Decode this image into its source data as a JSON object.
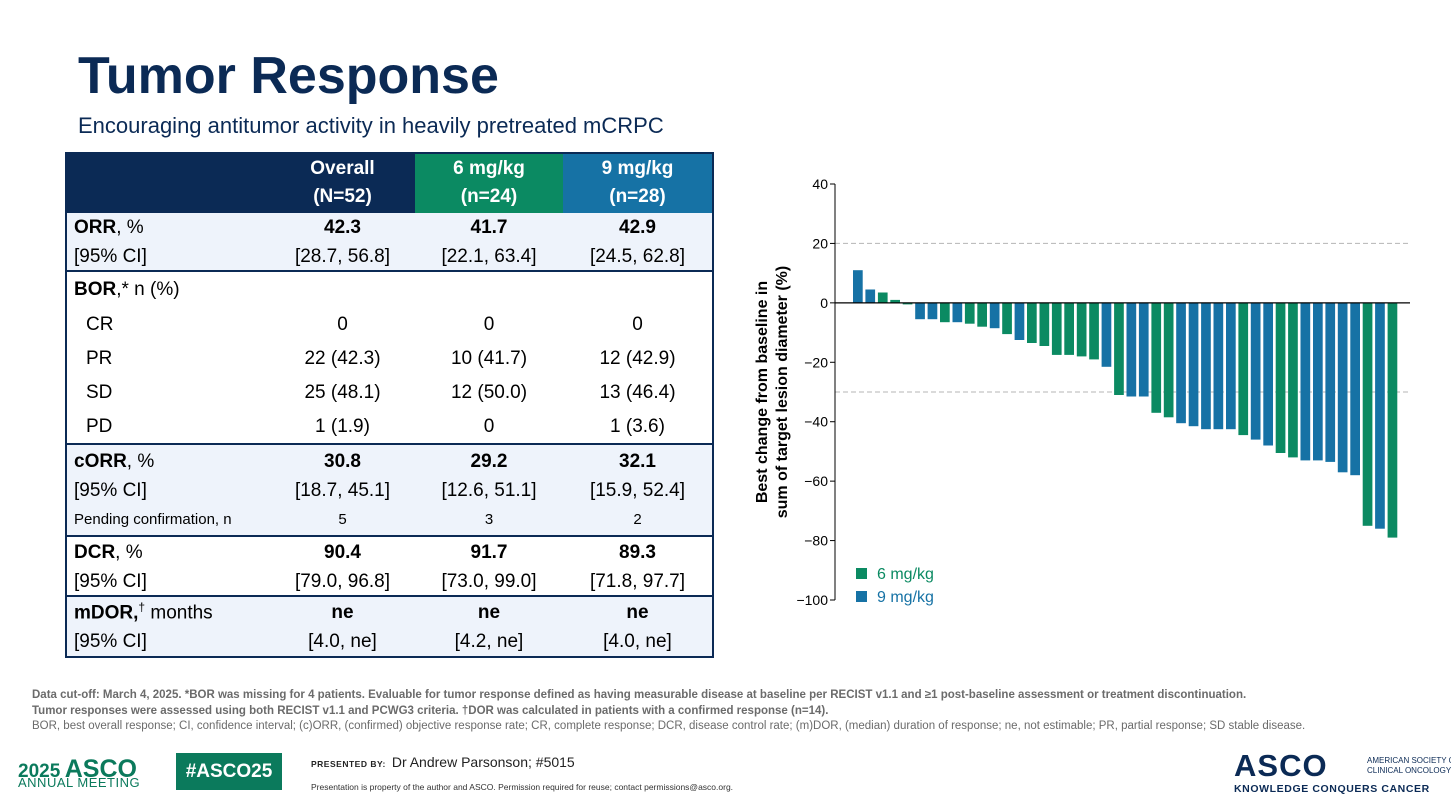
{
  "header": {
    "title": "Tumor Response",
    "subtitle": "Encouraging antitumor activity in heavily pretreated mCRPC"
  },
  "table": {
    "columns": [
      {
        "line1": "Overall",
        "line2": "(N=52)",
        "color": "#0b2a55"
      },
      {
        "line1": "6 mg/kg",
        "line2": "(n=24)",
        "color": "#0b8a62"
      },
      {
        "line1": "9 mg/kg",
        "line2": "(n=28)",
        "color": "#1672a5"
      }
    ],
    "orr": {
      "label_bold": "ORR",
      "label_rest": ", %",
      "ci_label": "[95% CI]",
      "values": [
        "42.3",
        "41.7",
        "42.9"
      ],
      "ci": [
        "[28.7, 56.8]",
        "[22.1, 63.4]",
        "[24.5, 62.8]"
      ]
    },
    "bor": {
      "label_bold": "BOR",
      "label_rest": ",* n (%)",
      "rows": [
        {
          "label": "CR",
          "values": [
            "0",
            "0",
            "0"
          ]
        },
        {
          "label": "PR",
          "values": [
            "22 (42.3)",
            "10 (41.7)",
            "12 (42.9)"
          ]
        },
        {
          "label": "SD",
          "values": [
            "25 (48.1)",
            "12 (50.0)",
            "13 (46.4)"
          ]
        },
        {
          "label": "PD",
          "values": [
            "1 (1.9)",
            "0",
            "1 (3.6)"
          ]
        }
      ]
    },
    "corr": {
      "label_bold": "cORR",
      "label_rest": ", %",
      "ci_label": "[95% CI]",
      "values": [
        "30.8",
        "29.2",
        "32.1"
      ],
      "ci": [
        "[18.7, 45.1]",
        "[12.6, 51.1]",
        "[15.9, 52.4]"
      ],
      "pending_label": "Pending confirmation, n",
      "pending": [
        "5",
        "3",
        "2"
      ]
    },
    "dcr": {
      "label_bold": "DCR",
      "label_rest": ", %",
      "ci_label": "[95% CI]",
      "values": [
        "90.4",
        "91.7",
        "89.3"
      ],
      "ci": [
        "[79.0, 96.8]",
        "[73.0, 99.0]",
        "[71.8, 97.7]"
      ]
    },
    "mdor": {
      "label_bold": "mDOR,",
      "label_sup": "†",
      "label_rest": " months",
      "ci_label": "[95% CI]",
      "values": [
        "ne",
        "ne",
        "ne"
      ],
      "ci": [
        "[4.0, ne]",
        "[4.2, ne]",
        "[4.0, ne]"
      ]
    }
  },
  "chart_data": {
    "type": "bar",
    "ylabel_line1": "Best change from baseline in",
    "ylabel_line2": "sum of target lesion diameter (%)",
    "ylim": [
      -100,
      40
    ],
    "yticks": [
      40,
      20,
      0,
      -20,
      -40,
      -60,
      -80,
      -100
    ],
    "ytick_labels": [
      "40",
      "20",
      "0",
      "−20",
      "−40",
      "−60",
      "−80",
      "−100"
    ],
    "reference_lines": [
      20,
      -30
    ],
    "legend": [
      {
        "name": "6 mg/kg",
        "color": "#0b8a62"
      },
      {
        "name": "9 mg/kg",
        "color": "#1672a5"
      }
    ],
    "bars": [
      {
        "value": 11,
        "group": "9 mg/kg"
      },
      {
        "value": 4.5,
        "group": "9 mg/kg"
      },
      {
        "value": 3.5,
        "group": "6 mg/kg"
      },
      {
        "value": 1,
        "group": "6 mg/kg"
      },
      {
        "value": -0.5,
        "group": "6 mg/kg"
      },
      {
        "value": -5.5,
        "group": "9 mg/kg"
      },
      {
        "value": -5.5,
        "group": "9 mg/kg"
      },
      {
        "value": -6.5,
        "group": "6 mg/kg"
      },
      {
        "value": -6.5,
        "group": "9 mg/kg"
      },
      {
        "value": -7,
        "group": "6 mg/kg"
      },
      {
        "value": -8,
        "group": "6 mg/kg"
      },
      {
        "value": -8.5,
        "group": "9 mg/kg"
      },
      {
        "value": -10.5,
        "group": "6 mg/kg"
      },
      {
        "value": -12.5,
        "group": "9 mg/kg"
      },
      {
        "value": -13.5,
        "group": "6 mg/kg"
      },
      {
        "value": -14.5,
        "group": "6 mg/kg"
      },
      {
        "value": -17.5,
        "group": "6 mg/kg"
      },
      {
        "value": -17.5,
        "group": "6 mg/kg"
      },
      {
        "value": -18,
        "group": "6 mg/kg"
      },
      {
        "value": -19,
        "group": "6 mg/kg"
      },
      {
        "value": -21.5,
        "group": "9 mg/kg"
      },
      {
        "value": -31,
        "group": "6 mg/kg"
      },
      {
        "value": -31.5,
        "group": "9 mg/kg"
      },
      {
        "value": -31.5,
        "group": "9 mg/kg"
      },
      {
        "value": -37,
        "group": "6 mg/kg"
      },
      {
        "value": -38.5,
        "group": "6 mg/kg"
      },
      {
        "value": -40.5,
        "group": "9 mg/kg"
      },
      {
        "value": -41.5,
        "group": "9 mg/kg"
      },
      {
        "value": -42.5,
        "group": "9 mg/kg"
      },
      {
        "value": -42.5,
        "group": "9 mg/kg"
      },
      {
        "value": -42.5,
        "group": "9 mg/kg"
      },
      {
        "value": -44.5,
        "group": "6 mg/kg"
      },
      {
        "value": -46,
        "group": "9 mg/kg"
      },
      {
        "value": -48,
        "group": "9 mg/kg"
      },
      {
        "value": -50.5,
        "group": "6 mg/kg"
      },
      {
        "value": -52,
        "group": "6 mg/kg"
      },
      {
        "value": -53,
        "group": "9 mg/kg"
      },
      {
        "value": -53,
        "group": "9 mg/kg"
      },
      {
        "value": -53.5,
        "group": "9 mg/kg"
      },
      {
        "value": -57,
        "group": "9 mg/kg"
      },
      {
        "value": -58,
        "group": "9 mg/kg"
      },
      {
        "value": -75,
        "group": "6 mg/kg"
      },
      {
        "value": -76,
        "group": "9 mg/kg"
      },
      {
        "value": -79,
        "group": "6 mg/kg"
      }
    ]
  },
  "footnotes": {
    "line1": "Data cut-off: March 4, 2025. *BOR was missing for 4 patients. Evaluable for tumor response defined as having measurable disease at baseline per RECIST v1.1 and ≥1 post-baseline assessment or treatment discontinuation.",
    "line2": "Tumor responses were assessed using both RECIST v1.1 and PCWG3 criteria. †DOR was calculated in patients with a confirmed response (n=14).",
    "line3": "BOR, best overall response; CI, confidence interval; (c)ORR, (confirmed) objective response rate; CR, complete response; DCR, disease control rate; (m)DOR, (median) duration of response; ne, not estimable; PR, partial response; SD stable disease."
  },
  "footer": {
    "meeting_year": "2025",
    "meeting_name": "ASCO",
    "meeting_sub": "ANNUAL MEETING",
    "hashtag": "#ASCO25",
    "presented_by_label": "PRESENTED BY:",
    "presenter": "Dr Andrew Parsonson; #5015",
    "property_note": "Presentation is property of the author and ASCO. Permission required for reuse; contact permissions@asco.org.",
    "org_word": "ASCO",
    "org_line1": "AMERICAN SOCIETY OF",
    "org_line2": "CLINICAL ONCOLOGY",
    "tagline": "KNOWLEDGE CONQUERS CANCER"
  }
}
